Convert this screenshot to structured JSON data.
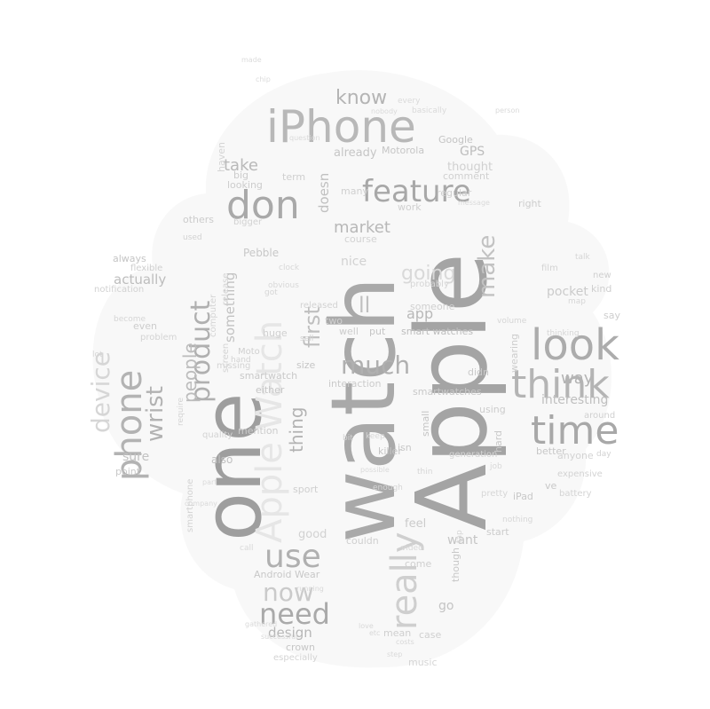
{
  "words": [
    {
      "text": "Apple",
      "color": "#a4a4a4"
    },
    {
      "text": "watch",
      "color": "#a9a9a9"
    },
    {
      "text": "one",
      "color": "#9e9e9e"
    },
    {
      "text": "Apple Watch",
      "color": "#e6e6e6"
    },
    {
      "text": "iPhone",
      "color": "#b8b8b8"
    },
    {
      "text": "look",
      "color": "#acacac"
    },
    {
      "text": "time",
      "color": "#a8a8a8"
    },
    {
      "text": "think",
      "color": "#b4b4b4"
    },
    {
      "text": "product",
      "color": "#b0b0b0"
    },
    {
      "text": "phone",
      "color": "#b3b3b3"
    },
    {
      "text": "don",
      "color": "#a9a9a9"
    },
    {
      "text": "feature",
      "color": "#a8a8a8"
    },
    {
      "text": "use",
      "color": "#b0b0b0"
    },
    {
      "text": "need",
      "color": "#aaaaaa"
    },
    {
      "text": "really",
      "color": "#cfcfcf"
    },
    {
      "text": "device",
      "color": "#d6d6d6"
    },
    {
      "text": "wrist",
      "color": "#b2b2b2"
    },
    {
      "text": "much",
      "color": "#b0b0b0"
    },
    {
      "text": "make",
      "color": "#c2c2c2"
    },
    {
      "text": "now",
      "color": "#cacaca"
    },
    {
      "text": "people",
      "color": "#bdbdbd"
    },
    {
      "text": "thing",
      "color": "#b3b3b3"
    },
    {
      "text": "first",
      "color": "#bfbfbf"
    },
    {
      "text": "know",
      "color": "#b4b4b4"
    },
    {
      "text": "market",
      "color": "#b8b8b8"
    },
    {
      "text": "take",
      "color": "#b9b9b9"
    },
    {
      "text": "going",
      "color": "#d9d9d9"
    },
    {
      "text": "ll",
      "color": "#c0c0c0"
    },
    {
      "text": "way",
      "color": "#b3b3b3"
    },
    {
      "text": "design",
      "color": "#b6b6b6"
    },
    {
      "text": "actually",
      "color": "#bdbdbd"
    },
    {
      "text": "pocket",
      "color": "#cbcbcb"
    },
    {
      "text": "app",
      "color": "#b8b8b8"
    },
    {
      "text": "sure",
      "color": "#c2c2c2"
    },
    {
      "text": "something",
      "color": "#c2c2c2"
    },
    {
      "text": "interesting",
      "color": "#bfbfbf"
    },
    {
      "text": "smartwatches",
      "color": "#c8c8c8"
    },
    {
      "text": "smart watches",
      "color": "#bdbdbd"
    },
    {
      "text": "GPS",
      "color": "#bdbdbd"
    },
    {
      "text": "Google",
      "color": "#c4c4c4"
    },
    {
      "text": "Motorola",
      "color": "#c6c6c6"
    },
    {
      "text": "already",
      "color": "#c6c6c6"
    },
    {
      "text": "thought",
      "color": "#d0d0d0"
    },
    {
      "text": "comment",
      "color": "#d0d0d0"
    },
    {
      "text": "doesn",
      "color": "#c0c0c0"
    },
    {
      "text": "looking",
      "color": "#cdcdcd"
    },
    {
      "text": "big",
      "color": "#cbcbcb"
    },
    {
      "text": "Pebble",
      "color": "#c8c8c8"
    },
    {
      "text": "Android Wear",
      "color": "#c8c8c8"
    },
    {
      "text": "crown",
      "color": "#c6c6c6"
    },
    {
      "text": "want",
      "color": "#c5c5c5"
    },
    {
      "text": "go",
      "color": "#c4c4c4"
    },
    {
      "text": "well",
      "color": "#cccccc"
    },
    {
      "text": "someone",
      "color": "#d0d0d0"
    },
    {
      "text": "hard",
      "color": "#c9c9c9"
    },
    {
      "text": "put",
      "color": "#c6c6c6"
    },
    {
      "text": "smartwatch",
      "color": "#c9c9c9"
    },
    {
      "text": "either",
      "color": "#c6c6c6"
    },
    {
      "text": "size",
      "color": "#c6c6c6"
    },
    {
      "text": "mention",
      "color": "#cccccc"
    },
    {
      "text": "also",
      "color": "#c1c1c1"
    },
    {
      "text": "point",
      "color": "#c9c9c9"
    },
    {
      "text": "sport",
      "color": "#cfcfcf"
    },
    {
      "text": "good",
      "color": "#d2d2d2"
    },
    {
      "text": "couldn",
      "color": "#d0d0d0"
    },
    {
      "text": "feel",
      "color": "#cbcbcb"
    },
    {
      "text": "using",
      "color": "#cdcdcd"
    },
    {
      "text": "better",
      "color": "#c8c8c8"
    },
    {
      "text": "ve",
      "color": "#c8c8c8"
    },
    {
      "text": "iPad",
      "color": "#c8c8c8"
    },
    {
      "text": "start",
      "color": "#cccccc"
    },
    {
      "text": "interaction",
      "color": "#cbcbcb"
    },
    {
      "text": "killer",
      "color": "#c5c5c5"
    },
    {
      "text": "isn",
      "color": "#c8c8c8"
    },
    {
      "text": "small",
      "color": "#c5c5c5"
    },
    {
      "text": "didn",
      "color": "#c9c9c9"
    },
    {
      "text": "wearing",
      "color": "#cdcdcd"
    },
    {
      "text": "though",
      "color": "#c8c8c8"
    },
    {
      "text": "come",
      "color": "#cfcfcf"
    },
    {
      "text": "case",
      "color": "#d0d0d0"
    },
    {
      "text": "mean",
      "color": "#cfcfcf"
    },
    {
      "text": "music",
      "color": "#d6d6d6"
    },
    {
      "text": "especially",
      "color": "#d4d4d4"
    },
    {
      "text": "always",
      "color": "#c5c5c5"
    },
    {
      "text": "flexible",
      "color": "#cfcfcf"
    },
    {
      "text": "notification",
      "color": "#d2d2d2"
    },
    {
      "text": "even",
      "color": "#cdcdcd"
    },
    {
      "text": "others",
      "color": "#cccccc"
    },
    {
      "text": "used",
      "color": "#d2d2d2"
    },
    {
      "text": "bigger",
      "color": "#d2d2d2"
    },
    {
      "text": "haven",
      "color": "#d4d4d4"
    },
    {
      "text": "term",
      "color": "#cfcfcf"
    },
    {
      "text": "work",
      "color": "#d0d0d0"
    },
    {
      "text": "regular",
      "color": "#d0d0d0"
    },
    {
      "text": "right",
      "color": "#cdcdcd"
    },
    {
      "text": "many",
      "color": "#d0d0d0"
    },
    {
      "text": "course",
      "color": "#d3d3d3"
    },
    {
      "text": "nice",
      "color": "#d2d2d2"
    },
    {
      "text": "released",
      "color": "#d3d3d3"
    },
    {
      "text": "two",
      "color": "#d0d0d0"
    },
    {
      "text": "Moto",
      "color": "#d0d0d0"
    },
    {
      "text": "say",
      "color": "#cdcdcd"
    },
    {
      "text": "kind",
      "color": "#cfcfcf"
    },
    {
      "text": "new",
      "color": "#d0d0d0"
    },
    {
      "text": "around",
      "color": "#d0d0d0"
    },
    {
      "text": "anyone",
      "color": "#d3d3d3"
    },
    {
      "text": "day",
      "color": "#d2d2d2"
    },
    {
      "text": "expensive",
      "color": "#d3d3d3"
    },
    {
      "text": "battery",
      "color": "#d4d4d4"
    },
    {
      "text": "probably",
      "color": "#d6d6d6"
    },
    {
      "text": "film",
      "color": "#d3d3d3"
    },
    {
      "text": "talk",
      "color": "#d6d6d6"
    },
    {
      "text": "map",
      "color": "#d6d6d6"
    },
    {
      "text": "thinking",
      "color": "#d6d6d6"
    },
    {
      "text": "problem",
      "color": "#d4d4d4"
    },
    {
      "text": "become",
      "color": "#d6d6d6"
    },
    {
      "text": "lot",
      "color": "#d6d6d6"
    },
    {
      "text": "quality",
      "color": "#d3d3d3"
    },
    {
      "text": "require",
      "color": "#d4d4d4"
    },
    {
      "text": "smartphone",
      "color": "#d3d3d3"
    },
    {
      "text": "missing",
      "color": "#d3d3d3"
    },
    {
      "text": "computer",
      "color": "#d5d5d5"
    },
    {
      "text": "release",
      "color": "#d4d4d4"
    },
    {
      "text": "screen",
      "color": "#d4d4d4"
    },
    {
      "text": "hand",
      "color": "#d3d3d3"
    },
    {
      "text": "huge",
      "color": "#d0d0d0"
    },
    {
      "text": "sell",
      "color": "#d3d3d3"
    },
    {
      "text": "generation",
      "color": "#d5d5d5"
    },
    {
      "text": "enough",
      "color": "#d6d6d6"
    },
    {
      "text": "job",
      "color": "#d8d8d8"
    },
    {
      "text": "nothing",
      "color": "#d7d7d7"
    },
    {
      "text": "pretty",
      "color": "#d7d7d7"
    },
    {
      "text": "video",
      "color": "#d8d8d8"
    },
    {
      "text": "call",
      "color": "#d9d9d9"
    },
    {
      "text": "every",
      "color": "#dadada"
    },
    {
      "text": "basically",
      "color": "#dadada"
    },
    {
      "text": "question",
      "color": "#dadada"
    },
    {
      "text": "nobody",
      "color": "#dadada"
    },
    {
      "text": "person",
      "color": "#dadada"
    },
    {
      "text": "message",
      "color": "#dadada"
    },
    {
      "text": "made",
      "color": "#dcdcdc"
    },
    {
      "text": "chip",
      "color": "#dcdcdc"
    },
    {
      "text": "got",
      "color": "#d6d6d6"
    },
    {
      "text": "clock",
      "color": "#d8d8d8"
    },
    {
      "text": "obvious",
      "color": "#d8d8d8"
    },
    {
      "text": "volume",
      "color": "#d6d6d6"
    },
    {
      "text": "thin",
      "color": "#d6d6d6"
    },
    {
      "text": "keep",
      "color": "#d8d8d8"
    },
    {
      "text": "tap",
      "color": "#d6d6d6"
    },
    {
      "text": "bit",
      "color": "#d4d4d4"
    },
    {
      "text": "part",
      "color": "#dadada"
    },
    {
      "text": "company",
      "color": "#dadada"
    },
    {
      "text": "possible",
      "color": "#dadada"
    },
    {
      "text": "running",
      "color": "#d8d8d8"
    },
    {
      "text": "love",
      "color": "#d8d8d8"
    },
    {
      "text": "etc",
      "color": "#d8d8d8"
    },
    {
      "text": "gathered",
      "color": "#dadada"
    },
    {
      "text": "successful",
      "color": "#d8d8d8"
    },
    {
      "text": "costs",
      "color": "#d8d8d8"
    },
    {
      "text": "step",
      "color": "#dadada"
    }
  ]
}
